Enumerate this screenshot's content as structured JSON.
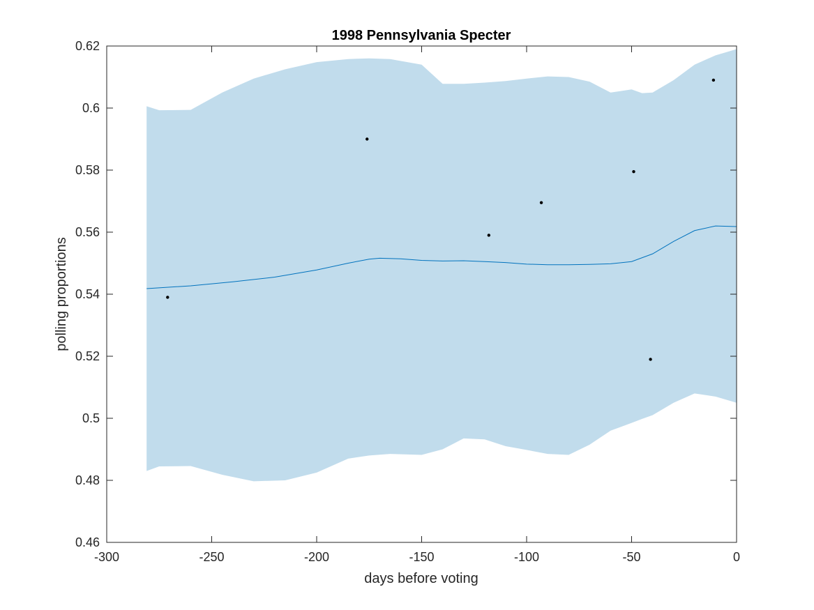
{
  "chart_data": {
    "type": "line",
    "title": "1998 Pennsylvania Specter",
    "xlabel": "days before voting",
    "ylabel": "polling proportions",
    "xlim": [
      -300,
      0
    ],
    "ylim": [
      0.46,
      0.62
    ],
    "xticks": [
      -300,
      -250,
      -200,
      -150,
      -100,
      -50,
      0
    ],
    "yticks": [
      0.46,
      0.48,
      0.5,
      0.52,
      0.54,
      0.56,
      0.58,
      0.6,
      0.62
    ],
    "xtick_labels": [
      "-300",
      "-250",
      "-200",
      "-150",
      "-100",
      "-50",
      "0"
    ],
    "ytick_labels": [
      "0.46",
      "0.48",
      "0.5",
      "0.52",
      "0.54",
      "0.56",
      "0.58",
      "0.6",
      "0.62"
    ],
    "grid": false,
    "colors": {
      "band": "#c1dcec",
      "line": "#0072bd",
      "points": "#000000",
      "axes": "#262626"
    },
    "band": {
      "x": [
        -281,
        -275,
        -260,
        -245,
        -230,
        -215,
        -200,
        -185,
        -175,
        -165,
        -150,
        -140,
        -130,
        -120,
        -110,
        -100,
        -90,
        -80,
        -70,
        -60,
        -50,
        -45,
        -40,
        -30,
        -20,
        -10,
        0
      ],
      "upper": [
        0.6006,
        0.5993,
        0.5994,
        0.605,
        0.6095,
        0.6125,
        0.6148,
        0.6158,
        0.616,
        0.6158,
        0.614,
        0.6078,
        0.6078,
        0.6082,
        0.6087,
        0.6095,
        0.6102,
        0.61,
        0.6085,
        0.605,
        0.606,
        0.6048,
        0.605,
        0.609,
        0.614,
        0.617,
        0.619
      ],
      "lower": [
        0.483,
        0.4845,
        0.4846,
        0.4818,
        0.4797,
        0.48,
        0.4825,
        0.487,
        0.488,
        0.4885,
        0.4882,
        0.49,
        0.4935,
        0.4932,
        0.491,
        0.4898,
        0.4885,
        0.4882,
        0.4915,
        0.496,
        0.4985,
        0.4998,
        0.501,
        0.505,
        0.508,
        0.507,
        0.505
      ]
    },
    "series": [
      {
        "type": "line",
        "x": [
          -281,
          -260,
          -240,
          -220,
          -200,
          -185,
          -175,
          -170,
          -160,
          -150,
          -140,
          -130,
          -120,
          -110,
          -100,
          -90,
          -80,
          -70,
          -60,
          -50,
          -40,
          -30,
          -20,
          -10,
          0
        ],
        "y": [
          0.5418,
          0.5427,
          0.544,
          0.5455,
          0.5478,
          0.55,
          0.5513,
          0.5516,
          0.5514,
          0.5509,
          0.5507,
          0.5508,
          0.5505,
          0.5502,
          0.5497,
          0.5495,
          0.5495,
          0.5496,
          0.5498,
          0.5505,
          0.553,
          0.557,
          0.5605,
          0.562,
          0.5618
        ]
      },
      {
        "type": "scatter",
        "x": [
          -271,
          -176,
          -118,
          -93,
          -49,
          -41,
          -11
        ],
        "y": [
          0.539,
          0.59,
          0.559,
          0.5695,
          0.5795,
          0.519,
          0.609
        ]
      }
    ]
  }
}
